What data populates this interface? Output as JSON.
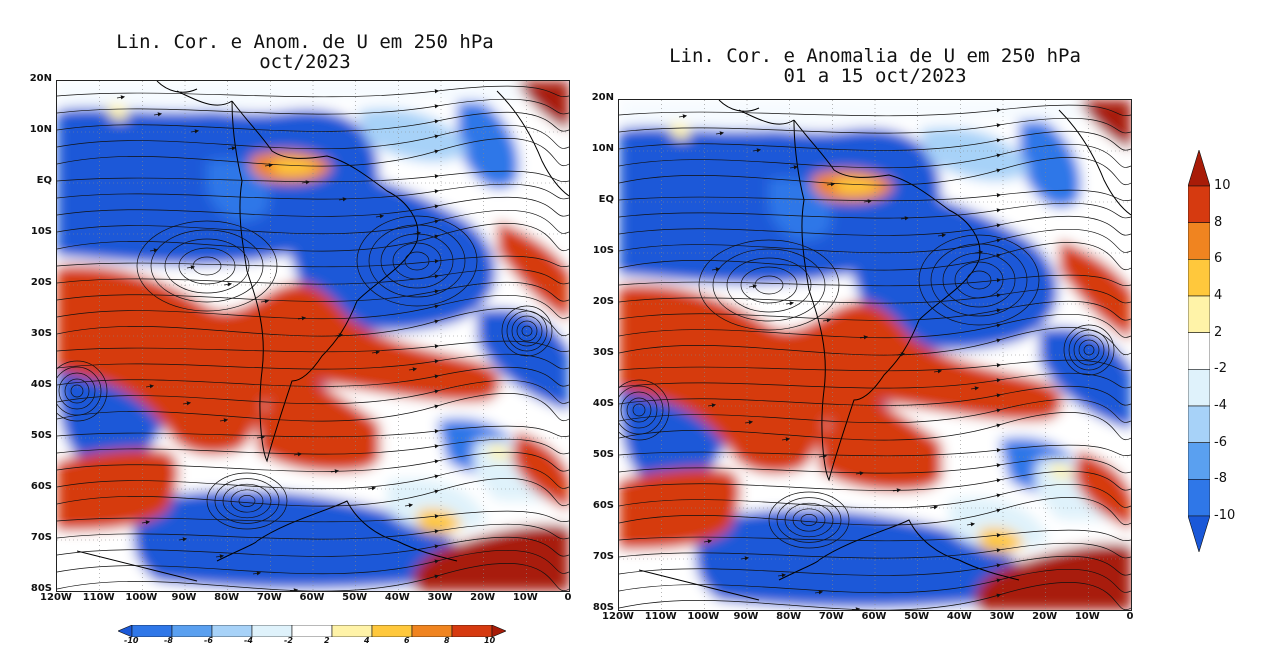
{
  "panels": {
    "left": {
      "title_line1": "Lin. Cor. e Anom. de U em 250 hPa",
      "title_line2": "oct/2023"
    },
    "right": {
      "title_line1": "Lin. Cor. e Anomalia de U em 250 hPa",
      "title_line2": "01 a 15 oct/2023"
    }
  },
  "axes": {
    "lat_labels": [
      "20N",
      "10N",
      "EQ",
      "10S",
      "20S",
      "30S",
      "40S",
      "50S",
      "60S",
      "70S",
      "80S"
    ],
    "lon_labels": [
      "120W",
      "110W",
      "100W",
      "90W",
      "80W",
      "70W",
      "60W",
      "50W",
      "40W",
      "30W",
      "20W",
      "10W",
      "0"
    ]
  },
  "colorbar": {
    "levels": [
      "-10",
      "-8",
      "-6",
      "-4",
      "-2",
      "2",
      "4",
      "6",
      "8",
      "10"
    ],
    "colors": [
      "#1a58d8",
      "#2f77e8",
      "#5aa0f0",
      "#a7d2f8",
      "#dff2fb",
      "#ffffff",
      "#fff3a8",
      "#ffc83c",
      "#f08420",
      "#d63a10",
      "#a81c08"
    ]
  }
}
